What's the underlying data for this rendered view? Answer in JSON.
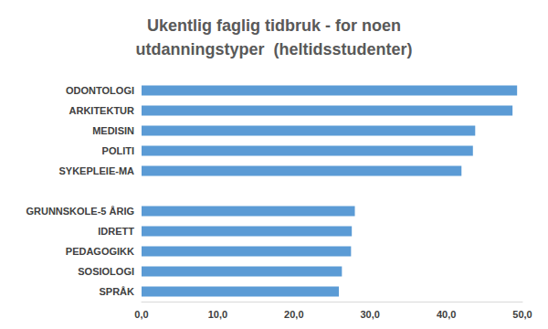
{
  "chart_data": {
    "type": "bar",
    "orientation": "horizontal",
    "title": "Ukentlig faglig tidbruk - for noen\nutdanningstyper  (heltidsstudenter)",
    "categories": [
      "ODONTOLOGI",
      "ARKITEKTUR",
      "MEDISIN",
      "POLITI",
      "SYKEPLEIE-MA",
      null,
      "GRUNNSKOLE-5 ÅRIG",
      "IDRETT",
      "PEDAGOGIKK",
      "SOSIOLOGI",
      "SPRÅK"
    ],
    "values": [
      49.3,
      48.7,
      43.8,
      43.5,
      42.0,
      null,
      28.0,
      27.6,
      27.5,
      26.3,
      25.9
    ],
    "color": "#5b9bd5",
    "xlim": [
      0,
      50
    ],
    "xticks": [
      {
        "value": 0,
        "label": "0,0"
      },
      {
        "value": 10,
        "label": "10,0"
      },
      {
        "value": 20,
        "label": "20,0"
      },
      {
        "value": 30,
        "label": "30,0"
      },
      {
        "value": 40,
        "label": "40,0"
      },
      {
        "value": 50,
        "label": "50,0"
      }
    ],
    "grid": false
  }
}
